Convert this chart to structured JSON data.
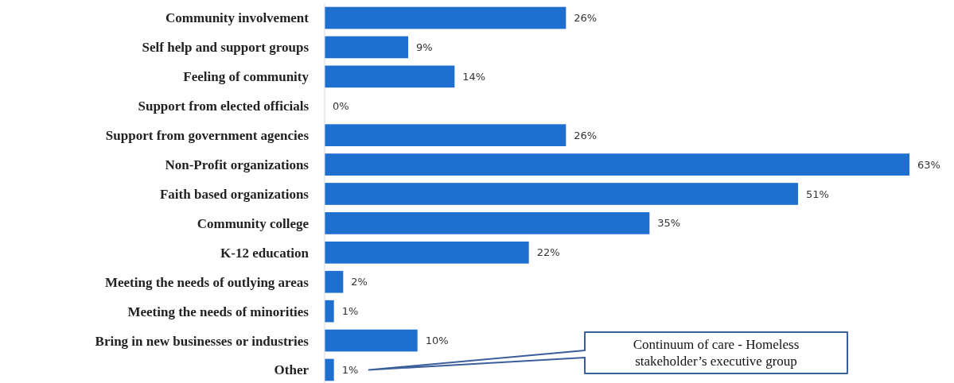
{
  "chart_data": {
    "type": "bar",
    "orientation": "horizontal",
    "categories": [
      "Community involvement",
      "Self help and support groups",
      "Feeling of community",
      "Support from elected officials",
      "Support from government agencies",
      "Non-Profit organizations",
      "Faith based organizations",
      "Community college",
      "K-12 education",
      "Meeting the needs of outlying areas",
      "Meeting the needs of minorities",
      "Bring in new businesses or industries",
      "Other"
    ],
    "values": [
      26,
      9,
      14,
      0,
      26,
      63,
      51,
      35,
      22,
      2,
      1,
      10,
      1
    ],
    "value_labels": [
      "26%",
      "9%",
      "14%",
      "0%",
      "26%",
      "63%",
      "51%",
      "35%",
      "22%",
      "2%",
      "1%",
      "10%",
      "1%"
    ],
    "color": "#1f6fd1",
    "annotations": [
      "Continuum of care - Homeless stakeholder’s executive group"
    ]
  }
}
